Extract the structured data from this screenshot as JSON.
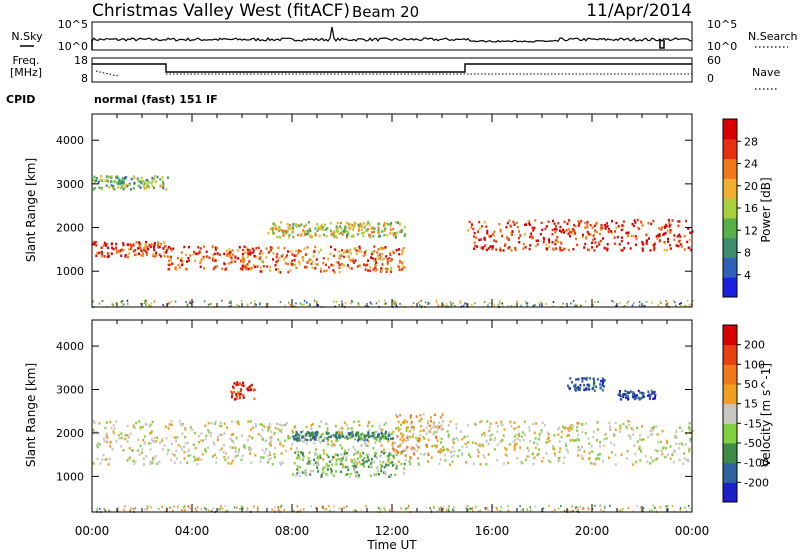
{
  "header": {
    "station": "Christmas Valley West (fitACF)",
    "beam": "Beam 20",
    "date": "11/Apr/2014"
  },
  "noise_panel": {
    "left_label": "N.Sky",
    "left_ticks": [
      "10^5",
      "10^0"
    ],
    "right_label": "N.Search",
    "right_ticks": [
      "10^5",
      "10^0"
    ]
  },
  "freq_panel": {
    "left_label_1": "Freq.",
    "left_label_2": "[MHz]",
    "left_ticks": [
      "18",
      "8"
    ],
    "right_label": "Nave",
    "right_ticks": [
      "60",
      "0"
    ]
  },
  "cpid": {
    "label": "CPID",
    "mode": "normal (fast) 151 IF"
  },
  "chart_data": [
    {
      "type": "heatmap",
      "panel": "power",
      "ylabel": "Slant Range [km]",
      "yticks": [
        1000,
        2000,
        3000,
        4000
      ],
      "ylim": [
        180,
        4600
      ],
      "xlabel": "Time UT",
      "xticks": [
        "00:00",
        "04:00",
        "08:00",
        "12:00",
        "16:00",
        "20:00",
        "00:00"
      ],
      "xlim_hours": [
        0,
        24
      ],
      "colorbar": {
        "label": "Power [dB]",
        "ticks": [
          "4",
          "8",
          "12",
          "16",
          "20",
          "24",
          "28"
        ],
        "range": [
          0,
          30
        ],
        "colors": [
          "#1c20e0",
          "#2e62b8",
          "#3c8c6e",
          "#58b048",
          "#a8d040",
          "#f2b030",
          "#f07818",
          "#e83010",
          "#d80000"
        ]
      },
      "features": [
        {
          "t_start": 0.0,
          "t_end": 3.0,
          "range_km": [
            1350,
            1700
          ],
          "power_db": 26
        },
        {
          "t_start": 3.0,
          "t_end": 6.5,
          "range_km": [
            1050,
            1600
          ],
          "power_db": 24
        },
        {
          "t_start": 6.0,
          "t_end": 12.5,
          "range_km": [
            1000,
            1600
          ],
          "power_db": 22
        },
        {
          "t_start": 7.0,
          "t_end": 12.5,
          "range_km": [
            1800,
            2150
          ],
          "power_db": 16
        },
        {
          "t_start": 15.0,
          "t_end": 24.0,
          "range_km": [
            1500,
            2200
          ],
          "power_db": 26
        },
        {
          "t_start": 0.0,
          "t_end": 3.0,
          "range_km": [
            2900,
            3200
          ],
          "power_db": 12
        }
      ]
    },
    {
      "type": "heatmap",
      "panel": "velocity",
      "ylabel": "Slant Range [km]",
      "yticks": [
        1000,
        2000,
        3000,
        4000
      ],
      "ylim": [
        180,
        4600
      ],
      "xlabel": "Time UT",
      "xticks": [
        "00:00",
        "04:00",
        "08:00",
        "12:00",
        "16:00",
        "20:00",
        "00:00"
      ],
      "xlim_hours": [
        0,
        24
      ],
      "colorbar": {
        "label": "Velocity [m s^-1]",
        "ticks": [
          "200",
          "100",
          "50",
          "15",
          "-15",
          "-50",
          "-100",
          "-200"
        ],
        "range": [
          -250,
          250
        ],
        "colors": [
          "#1c20c8",
          "#2e62a0",
          "#3c8c48",
          "#80d040",
          "#c8c8c0",
          "#f0a020",
          "#f07818",
          "#e84010",
          "#d80000"
        ]
      },
      "features": [
        {
          "t_start": 0.0,
          "t_end": 24.0,
          "range_km": [
            1300,
            2300
          ],
          "velocity_ms": 0
        },
        {
          "t_start": 8.0,
          "t_end": 12.5,
          "range_km": [
            1000,
            1600
          ],
          "velocity_ms": -60
        },
        {
          "t_start": 8.0,
          "t_end": 12.0,
          "range_km": [
            1850,
            2050
          ],
          "velocity_ms": -120
        },
        {
          "t_start": 12.0,
          "t_end": 14.0,
          "range_km": [
            1500,
            2500
          ],
          "velocity_ms": 60
        },
        {
          "t_start": 19.0,
          "t_end": 20.5,
          "range_km": [
            3000,
            3300
          ],
          "velocity_ms": -180
        },
        {
          "t_start": 21.0,
          "t_end": 22.5,
          "range_km": [
            2800,
            3000
          ],
          "velocity_ms": -180
        },
        {
          "t_start": 5.5,
          "t_end": 6.5,
          "range_km": [
            2800,
            3200
          ],
          "velocity_ms": 180
        }
      ]
    }
  ]
}
